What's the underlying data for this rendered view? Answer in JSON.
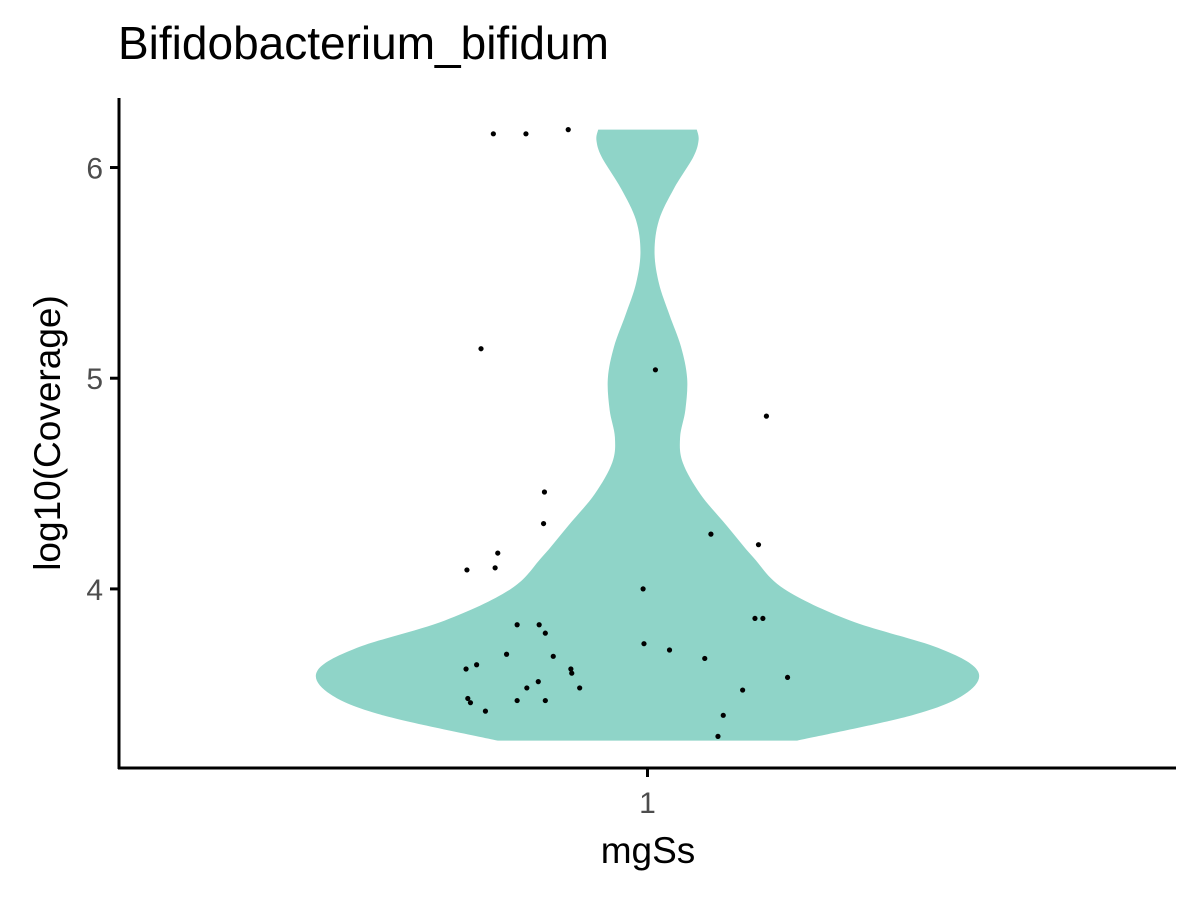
{
  "chart_data": {
    "type": "violin",
    "title": "Bifidobacterium_bifidum",
    "xlabel": "mgSs",
    "ylabel": "log10(Coverage)",
    "categories": [
      "1"
    ],
    "yticks": [
      "4",
      "5",
      "6"
    ],
    "ylim": [
      3.15,
      6.33
    ],
    "fill_color": "#8fd4c8",
    "point_color": "#000000",
    "grid": false,
    "violin_profile": [
      {
        "y": 3.28,
        "halfwidth": 0.17
      },
      {
        "y": 3.4,
        "halfwidth": 0.3
      },
      {
        "y": 3.5,
        "halfwidth": 0.36
      },
      {
        "y": 3.61,
        "halfwidth": 0.375
      },
      {
        "y": 3.72,
        "halfwidth": 0.33
      },
      {
        "y": 3.85,
        "halfwidth": 0.23
      },
      {
        "y": 4.0,
        "halfwidth": 0.155
      },
      {
        "y": 4.15,
        "halfwidth": 0.12
      },
      {
        "y": 4.3,
        "halfwidth": 0.09
      },
      {
        "y": 4.45,
        "halfwidth": 0.06
      },
      {
        "y": 4.6,
        "halfwidth": 0.04
      },
      {
        "y": 4.72,
        "halfwidth": 0.037
      },
      {
        "y": 4.85,
        "halfwidth": 0.043
      },
      {
        "y": 5.0,
        "halfwidth": 0.045
      },
      {
        "y": 5.15,
        "halfwidth": 0.038
      },
      {
        "y": 5.3,
        "halfwidth": 0.025
      },
      {
        "y": 5.45,
        "halfwidth": 0.013
      },
      {
        "y": 5.6,
        "halfwidth": 0.008
      },
      {
        "y": 5.75,
        "halfwidth": 0.013
      },
      {
        "y": 5.9,
        "halfwidth": 0.03
      },
      {
        "y": 6.05,
        "halfwidth": 0.052
      },
      {
        "y": 6.13,
        "halfwidth": 0.058
      },
      {
        "y": 6.18,
        "halfwidth": 0.056
      }
    ],
    "points": [
      {
        "x": 0.825,
        "y": 6.16
      },
      {
        "x": 0.862,
        "y": 6.16
      },
      {
        "x": 0.91,
        "y": 6.18
      },
      {
        "x": 0.811,
        "y": 5.14
      },
      {
        "x": 1.009,
        "y": 5.04
      },
      {
        "x": 1.135,
        "y": 4.82
      },
      {
        "x": 0.883,
        "y": 4.46
      },
      {
        "x": 0.882,
        "y": 4.31
      },
      {
        "x": 1.072,
        "y": 4.26
      },
      {
        "x": 1.126,
        "y": 4.21
      },
      {
        "x": 0.83,
        "y": 4.17
      },
      {
        "x": 0.827,
        "y": 4.1
      },
      {
        "x": 0.795,
        "y": 4.09
      },
      {
        "x": 0.995,
        "y": 4.0
      },
      {
        "x": 1.122,
        "y": 3.86
      },
      {
        "x": 1.131,
        "y": 3.86
      },
      {
        "x": 0.852,
        "y": 3.83
      },
      {
        "x": 0.877,
        "y": 3.83
      },
      {
        "x": 0.884,
        "y": 3.79
      },
      {
        "x": 0.996,
        "y": 3.74
      },
      {
        "x": 1.025,
        "y": 3.71
      },
      {
        "x": 0.84,
        "y": 3.69
      },
      {
        "x": 0.893,
        "y": 3.68
      },
      {
        "x": 1.065,
        "y": 3.67
      },
      {
        "x": 0.794,
        "y": 3.62
      },
      {
        "x": 0.806,
        "y": 3.64
      },
      {
        "x": 0.913,
        "y": 3.62
      },
      {
        "x": 0.914,
        "y": 3.6
      },
      {
        "x": 1.159,
        "y": 3.58
      },
      {
        "x": 0.876,
        "y": 3.56
      },
      {
        "x": 0.863,
        "y": 3.53
      },
      {
        "x": 0.923,
        "y": 3.53
      },
      {
        "x": 1.108,
        "y": 3.52
      },
      {
        "x": 0.796,
        "y": 3.48
      },
      {
        "x": 0.799,
        "y": 3.46
      },
      {
        "x": 0.852,
        "y": 3.47
      },
      {
        "x": 0.884,
        "y": 3.47
      },
      {
        "x": 0.816,
        "y": 3.42
      },
      {
        "x": 1.086,
        "y": 3.4
      },
      {
        "x": 1.08,
        "y": 3.3
      }
    ]
  }
}
